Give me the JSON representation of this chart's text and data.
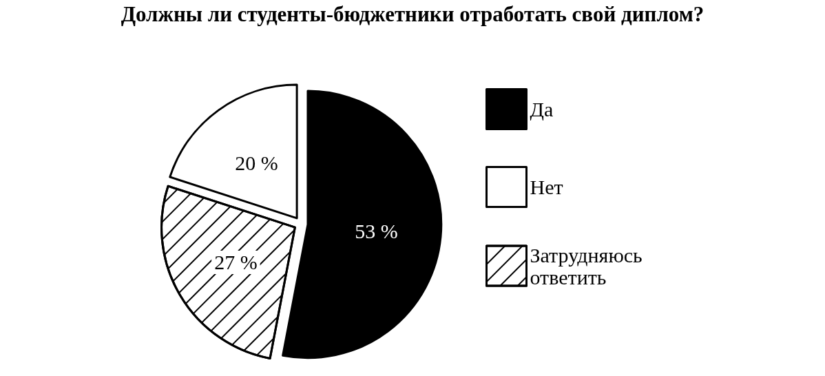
{
  "chart_data": {
    "type": "pie",
    "title": "Должны ли студенты-бюджетники отработать свой диплом?",
    "categories": [
      "Да",
      "Нет",
      "Затрудняюсь ответить"
    ],
    "values": [
      53,
      20,
      27
    ],
    "value_labels": [
      "53 %",
      "20 %",
      "27 %"
    ],
    "colors": [
      "#000000",
      "#ffffff",
      "#ffffff"
    ],
    "legend": "right"
  }
}
